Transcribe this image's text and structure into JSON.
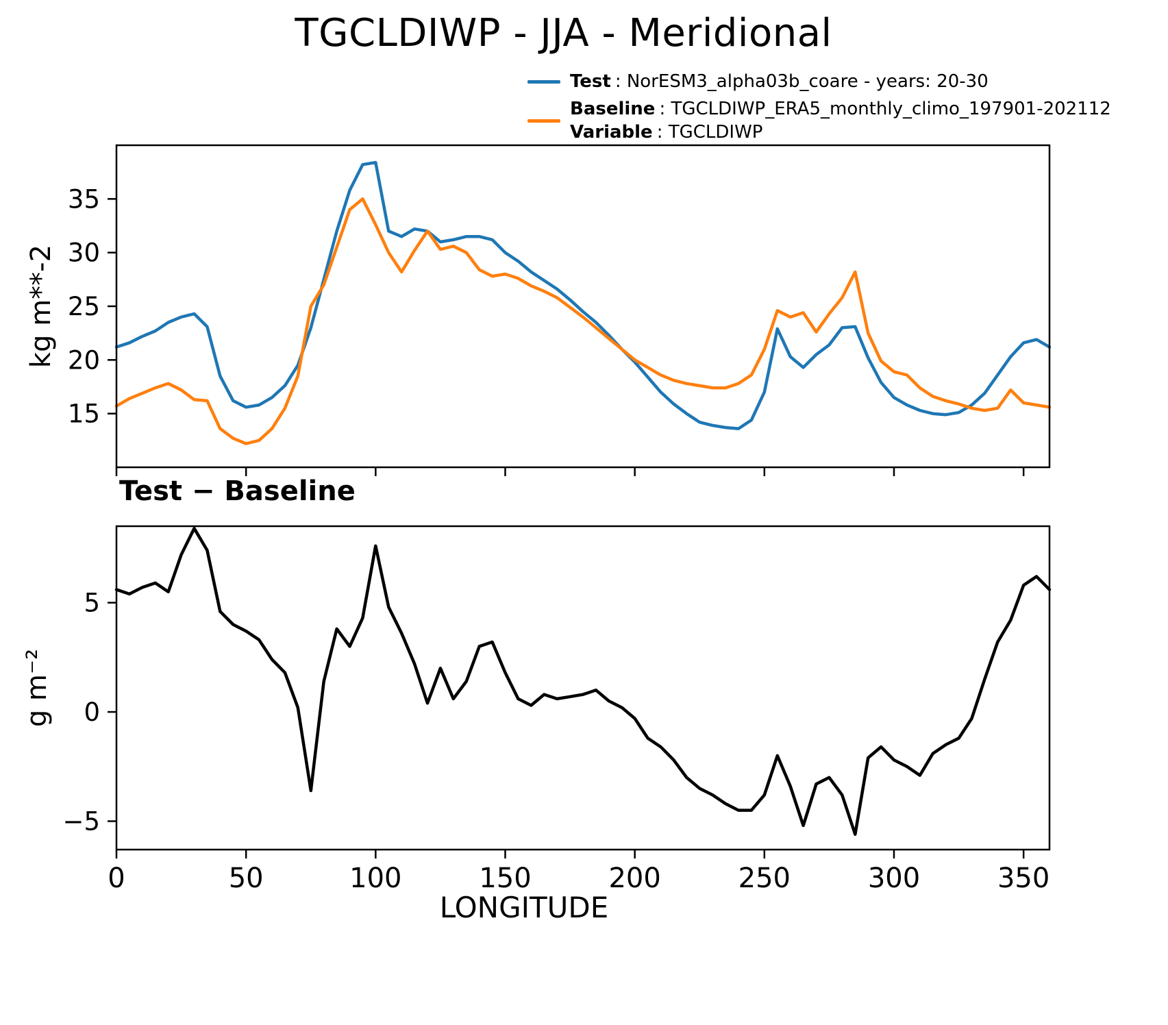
{
  "title": "TGCLDIWP - JJA - Meridional",
  "subtitle": "Test − Baseline",
  "xlabel": "LONGITUDE",
  "legend": {
    "test_label": "Test",
    "test_desc": ": NorESM3_alpha03b_coare - years: 20-30",
    "baseline_label": "Baseline",
    "baseline_desc": ": TGCLDIWP_ERA5_monthly_climo_197901-202112",
    "variable_label": "Variable",
    "variable_desc": ": TGCLDIWP"
  },
  "colors": {
    "test": "#1f77b4",
    "baseline": "#ff7f0e",
    "diff": "#000000"
  },
  "chart_data": [
    {
      "type": "line",
      "panel": "top",
      "ylabel": "kg m**-2",
      "xlim": [
        0,
        360
      ],
      "ylim": [
        10,
        40
      ],
      "xticks": [
        0,
        50,
        100,
        150,
        200,
        250,
        300,
        350
      ],
      "yticks": [
        15,
        20,
        25,
        30,
        35
      ],
      "grid": false,
      "legend_position": "above right",
      "x": [
        0,
        5,
        10,
        15,
        20,
        25,
        30,
        35,
        40,
        45,
        50,
        55,
        60,
        65,
        70,
        75,
        80,
        85,
        90,
        95,
        100,
        105,
        110,
        115,
        120,
        125,
        130,
        135,
        140,
        145,
        150,
        155,
        160,
        165,
        170,
        175,
        180,
        185,
        190,
        195,
        200,
        205,
        210,
        215,
        220,
        225,
        230,
        235,
        240,
        245,
        250,
        255,
        260,
        265,
        270,
        275,
        280,
        285,
        290,
        295,
        300,
        305,
        310,
        315,
        320,
        325,
        330,
        335,
        340,
        345,
        350,
        355,
        360
      ],
      "series": [
        {
          "name": "Test",
          "color": "#1f77b4",
          "values": [
            21.2,
            21.6,
            22.2,
            22.7,
            23.5,
            24.0,
            24.3,
            23.1,
            18.5,
            16.2,
            15.6,
            15.8,
            16.5,
            17.6,
            19.5,
            23.0,
            27.5,
            32.0,
            35.8,
            38.2,
            38.4,
            32.0,
            31.5,
            32.2,
            32.0,
            31.0,
            31.2,
            31.5,
            31.5,
            31.2,
            30.0,
            29.2,
            28.2,
            27.4,
            26.6,
            25.6,
            24.5,
            23.5,
            22.3,
            21.0,
            19.8,
            18.4,
            17.0,
            15.9,
            15.0,
            14.2,
            13.9,
            13.7,
            13.6,
            14.4,
            17.0,
            22.9,
            20.3,
            19.3,
            20.5,
            21.4,
            23.0,
            23.1,
            20.2,
            17.9,
            16.5,
            15.8,
            15.3,
            15.0,
            14.9,
            15.1,
            15.8,
            16.9,
            18.6,
            20.3,
            21.6,
            21.9,
            21.2
          ]
        },
        {
          "name": "Baseline",
          "color": "#ff7f0e",
          "values": [
            15.7,
            16.4,
            16.9,
            17.4,
            17.8,
            17.2,
            16.3,
            16.2,
            13.6,
            12.7,
            12.2,
            12.5,
            13.6,
            15.5,
            18.5,
            25.0,
            27.0,
            30.5,
            34.0,
            35.0,
            32.6,
            30.0,
            28.2,
            30.2,
            32.0,
            30.3,
            30.6,
            30.0,
            28.4,
            27.8,
            28.0,
            27.6,
            26.9,
            26.4,
            25.8,
            24.9,
            24.0,
            23.0,
            22.0,
            21.0,
            20.0,
            19.3,
            18.6,
            18.1,
            17.8,
            17.6,
            17.4,
            17.4,
            17.8,
            18.6,
            21.0,
            24.6,
            24.0,
            24.4,
            22.6,
            24.3,
            25.8,
            28.2,
            22.5,
            19.9,
            18.9,
            18.6,
            17.4,
            16.6,
            16.2,
            15.9,
            15.5,
            15.3,
            15.5,
            17.2,
            16.0,
            15.8,
            15.6
          ]
        }
      ]
    },
    {
      "type": "line",
      "panel": "bottom",
      "title": "Test − Baseline",
      "ylabel": "g m⁻²",
      "xlabel": "LONGITUDE",
      "xlim": [
        0,
        360
      ],
      "ylim": [
        -6.3,
        8.5
      ],
      "xticks": [
        0,
        50,
        100,
        150,
        200,
        250,
        300,
        350
      ],
      "yticks": [
        -5,
        0,
        5
      ],
      "grid": false,
      "x": [
        0,
        5,
        10,
        15,
        20,
        25,
        30,
        35,
        40,
        45,
        50,
        55,
        60,
        65,
        70,
        75,
        80,
        85,
        90,
        95,
        100,
        105,
        110,
        115,
        120,
        125,
        130,
        135,
        140,
        145,
        150,
        155,
        160,
        165,
        170,
        175,
        180,
        185,
        190,
        195,
        200,
        205,
        210,
        215,
        220,
        225,
        230,
        235,
        240,
        245,
        250,
        255,
        260,
        265,
        270,
        275,
        280,
        285,
        290,
        295,
        300,
        305,
        310,
        315,
        320,
        325,
        330,
        335,
        340,
        345,
        350,
        355,
        360
      ],
      "series": [
        {
          "name": "Test − Baseline",
          "color": "#000000",
          "values": [
            5.6,
            5.4,
            5.7,
            5.9,
            5.5,
            7.2,
            8.4,
            7.4,
            4.6,
            4.0,
            3.7,
            3.3,
            2.4,
            1.8,
            0.2,
            -3.6,
            1.4,
            3.8,
            3.0,
            4.3,
            7.6,
            4.8,
            3.6,
            2.2,
            0.4,
            2.0,
            0.6,
            1.4,
            3.0,
            3.2,
            1.8,
            0.6,
            0.3,
            0.8,
            0.6,
            0.7,
            0.8,
            1.0,
            0.5,
            0.2,
            -0.3,
            -1.2,
            -1.6,
            -2.2,
            -3.0,
            -3.5,
            -3.8,
            -4.2,
            -4.5,
            -4.5,
            -3.8,
            -2.0,
            -3.4,
            -5.2,
            -3.3,
            -3.0,
            -3.8,
            -5.6,
            -2.1,
            -1.6,
            -2.2,
            -2.5,
            -2.9,
            -1.9,
            -1.5,
            -1.2,
            -0.3,
            1.5,
            3.2,
            4.2,
            5.8,
            6.2,
            5.6
          ]
        }
      ]
    }
  ]
}
